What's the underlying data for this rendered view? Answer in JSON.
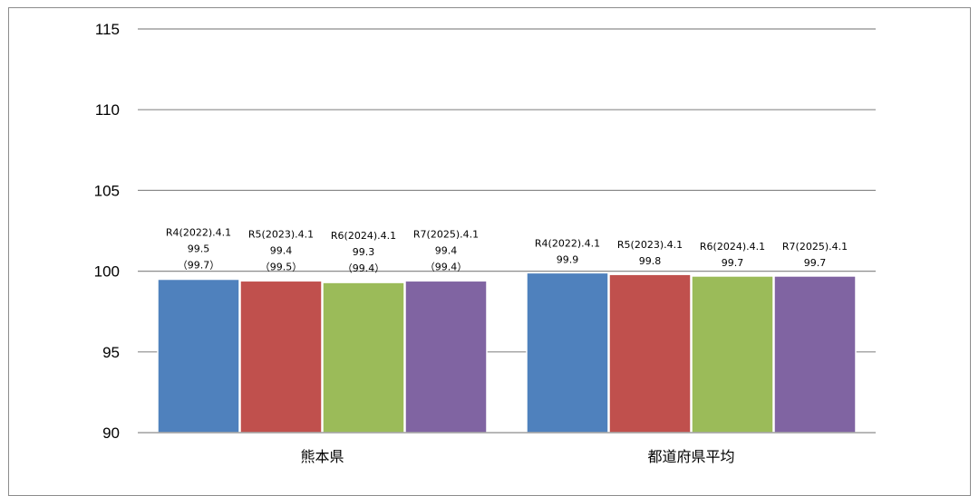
{
  "chart_data": {
    "type": "bar",
    "title": "",
    "xlabel": "",
    "ylabel": "",
    "ylim": [
      90,
      115
    ],
    "yticks": [
      90,
      95,
      100,
      105,
      110,
      115
    ],
    "grid": true,
    "legend": "none",
    "categories": [
      "熊本県",
      "都道府県平均"
    ],
    "series": [
      {
        "color": "#4f81bd",
        "values": [
          99.5,
          99.9
        ],
        "label_dates": [
          "R4(2022).4.1",
          "R4(2022).4.1"
        ],
        "label_values": [
          "99.5",
          "99.9"
        ],
        "label_notes": [
          "（99.7）",
          ""
        ]
      },
      {
        "color": "#c0504d",
        "values": [
          99.4,
          99.8
        ],
        "label_dates": [
          "R5(2023).4.1",
          "R5(2023).4.1"
        ],
        "label_values": [
          "99.4",
          "99.8"
        ],
        "label_notes": [
          "（99.5）",
          ""
        ]
      },
      {
        "color": "#9bbb59",
        "values": [
          99.3,
          99.7
        ],
        "label_dates": [
          "R6(2024).4.1",
          "R6(2024).4.1"
        ],
        "label_values": [
          "99.3",
          "99.7"
        ],
        "label_notes": [
          "（99.4）",
          ""
        ]
      },
      {
        "color": "#8064a2",
        "values": [
          99.4,
          99.7
        ],
        "label_dates": [
          "R7(2025).4.1",
          "R7(2025).4.1"
        ],
        "label_values": [
          "99.4",
          "99.7"
        ],
        "label_notes": [
          "（99.4）",
          ""
        ]
      }
    ]
  }
}
